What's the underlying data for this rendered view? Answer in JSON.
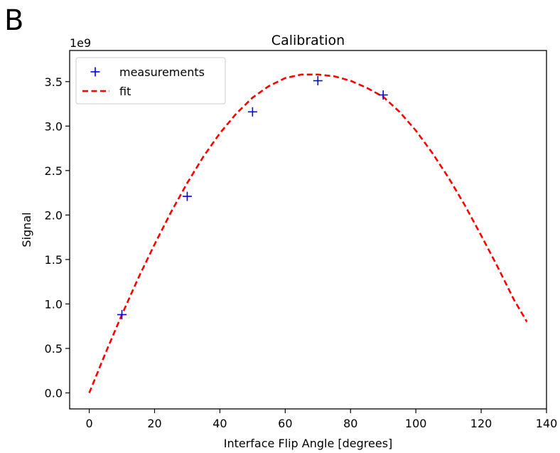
{
  "panel_label": "B",
  "chart_data": {
    "type": "scatter",
    "title": "Calibration",
    "xlabel": "Interface Flip Angle [degrees]",
    "ylabel": "Signal",
    "y_offset_label": "1e9",
    "xlim": [
      -6,
      140
    ],
    "ylim": [
      -0.18,
      3.85
    ],
    "x_ticks": [
      0,
      20,
      40,
      60,
      80,
      100,
      120,
      140
    ],
    "x_tick_labels": [
      "0",
      "20",
      "40",
      "60",
      "80",
      "100",
      "120",
      "140"
    ],
    "y_ticks": [
      0.0,
      0.5,
      1.0,
      1.5,
      2.0,
      2.5,
      3.0,
      3.5
    ],
    "y_tick_labels": [
      "0.0",
      "0.5",
      "1.0",
      "1.5",
      "2.0",
      "2.5",
      "3.0",
      "3.5"
    ],
    "grid": false,
    "legend_position": "top-left",
    "series": [
      {
        "name": "measurements",
        "kind": "scatter",
        "marker": "plus",
        "color": "#0000ff",
        "x": [
          10,
          30,
          50,
          70,
          90
        ],
        "y": [
          0.88,
          2.21,
          3.16,
          3.51,
          3.35
        ]
      },
      {
        "name": "fit",
        "kind": "line",
        "style": "dashed",
        "color": "#ff0000",
        "x": [
          0,
          5,
          10,
          15,
          20,
          25,
          30,
          35,
          40,
          45,
          50,
          55,
          60,
          65,
          70,
          75,
          80,
          85,
          90,
          95,
          100,
          105,
          110,
          115,
          120,
          125,
          130,
          134
        ],
        "y": [
          0.0,
          0.45,
          0.88,
          1.29,
          1.67,
          2.03,
          2.36,
          2.66,
          2.92,
          3.14,
          3.32,
          3.45,
          3.54,
          3.58,
          3.58,
          3.56,
          3.51,
          3.43,
          3.33,
          3.16,
          2.95,
          2.7,
          2.42,
          2.11,
          1.77,
          1.42,
          1.05,
          0.8
        ]
      }
    ]
  }
}
